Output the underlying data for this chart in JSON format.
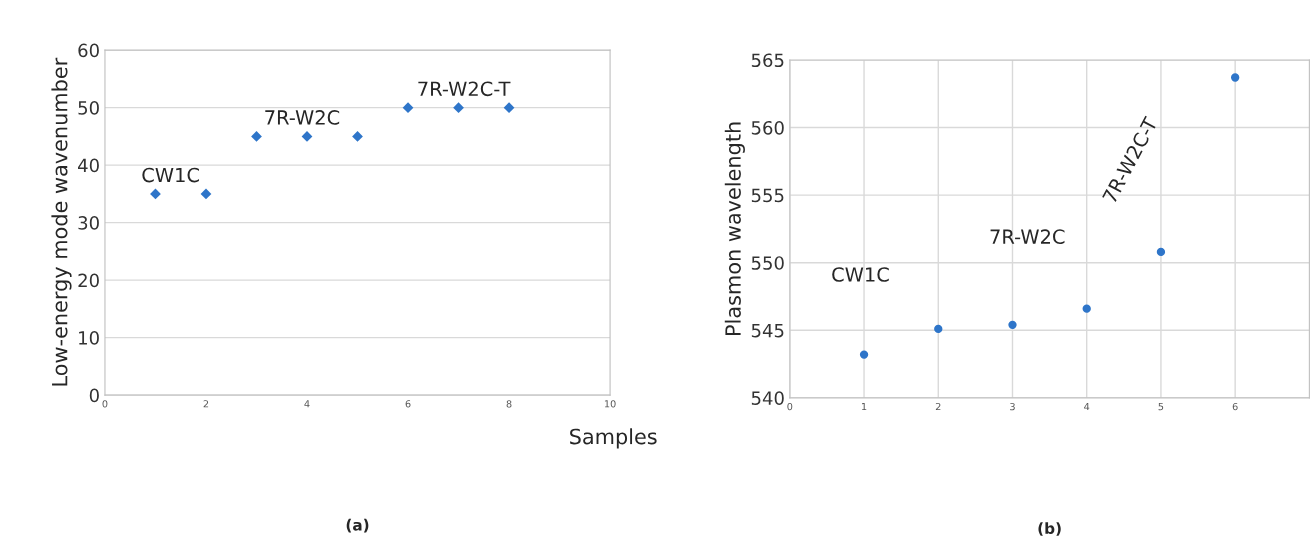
{
  "chart_data": [
    {
      "type": "scatter",
      "ylabel": "Low-energy mode wavenumber",
      "x": [
        1,
        2,
        3,
        4,
        5,
        6,
        7,
        8
      ],
      "values": [
        35,
        35,
        45,
        45,
        45,
        50,
        50,
        50
      ],
      "color": "#2e75c9",
      "marker": "diamond",
      "xlim": [
        0,
        10
      ],
      "xticks": [
        0,
        2,
        4,
        6,
        8,
        10
      ],
      "ylim": [
        0,
        60
      ],
      "yticks": [
        0,
        10,
        20,
        30,
        40,
        50,
        60
      ],
      "grid": "y",
      "annotations": [
        "CW1C",
        "7R-W2C",
        "7R-W2C-T",
        "(a)"
      ]
    },
    {
      "type": "scatter",
      "ylabel": "Plasmon wavelength",
      "xlabel": "Samples",
      "x": [
        1,
        2,
        3,
        4,
        5,
        6
      ],
      "values": [
        543.2,
        545.1,
        545.4,
        546.6,
        550.8,
        563.7
      ],
      "color": "#2e75c9",
      "marker": "circle",
      "xlim": [
        0,
        7
      ],
      "xticks": [
        0,
        1,
        2,
        3,
        4,
        5,
        6
      ],
      "ylim": [
        540,
        565
      ],
      "yticks": [
        540,
        545,
        550,
        555,
        560,
        565
      ],
      "grid": true,
      "annotations": [
        "CW1C",
        "7R-W2C",
        "7R-W2C-T",
        "(b)"
      ]
    }
  ]
}
